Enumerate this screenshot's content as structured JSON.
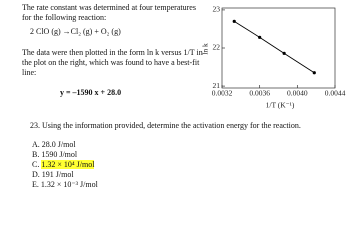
{
  "intro": "The rate constant was determined at four temperatures for the following reaction:",
  "reaction": "2 ClO (g) →Cl₂ (g) + O₂ (g)",
  "plot_text": "The data were then plotted in the form ln k versus 1/T in the plot on the right, which was found to have a best-fit line:",
  "fit_equation": "y = –1590 x + 28.0",
  "chart_data": {
    "type": "line",
    "ylabel": "ln k",
    "xlabel": "1/T (K⁻¹)",
    "x": [
      0.00333,
      0.0036,
      0.00386,
      0.00418
    ],
    "series": [
      {
        "color": "#000000",
        "values": [
          22.7,
          22.28,
          21.86,
          21.35
        ]
      }
    ],
    "xlim": [
      0.0032,
      0.0044
    ],
    "xticks": [
      0.0032,
      0.0036,
      0.004,
      0.0044
    ],
    "xtick_labels": [
      "0.0032",
      "0.0036",
      "0.0040",
      "0.0044"
    ],
    "ylim": [
      20.95,
      23.05
    ],
    "yticks": [
      21,
      22,
      23
    ]
  },
  "question": "23. Using the information provided, determine the activation energy for the reaction.",
  "options": [
    {
      "letter": "A.",
      "text": "28.0 J/mol"
    },
    {
      "letter": "B.",
      "text": "1590 J/mol"
    },
    {
      "letter": "C.",
      "text": "1.32 × 10⁴ J/mol",
      "highlighted": true
    },
    {
      "letter": "D.",
      "text": "191 J/mol"
    },
    {
      "letter": "E.",
      "text": "1.32 × 10⁻³ J/mol"
    }
  ]
}
